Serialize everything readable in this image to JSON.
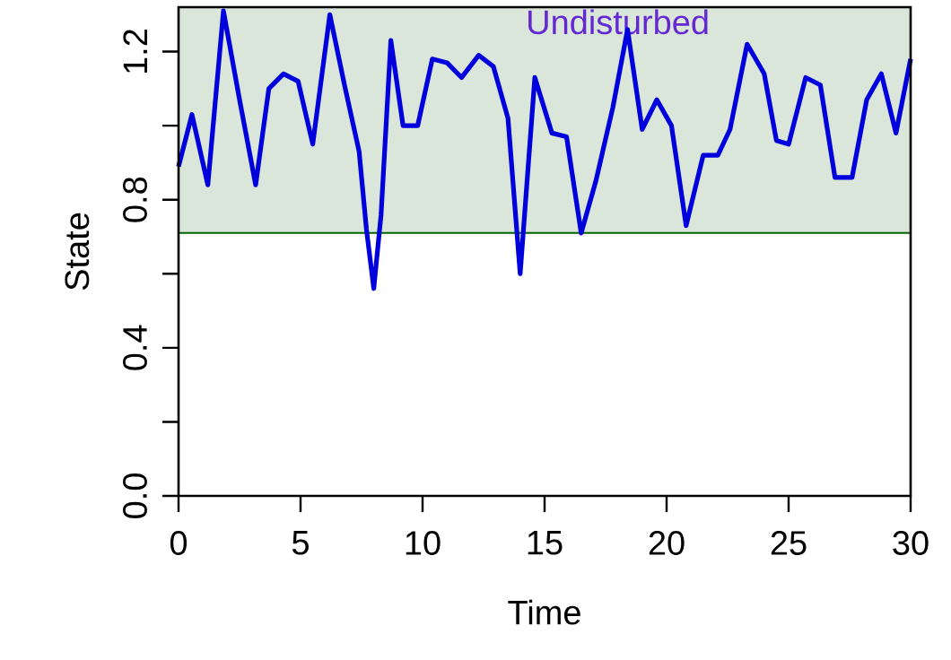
{
  "chart_data": {
    "type": "line",
    "xlabel": "Time",
    "ylabel": "State",
    "x": [
      0,
      0.55,
      1.2,
      1.84,
      2.5,
      3.16,
      3.7,
      4.3,
      4.9,
      5.5,
      6.2,
      6.8,
      7.4,
      7.7,
      8.0,
      8.3,
      8.7,
      9.2,
      9.8,
      10.4,
      11.0,
      11.6,
      12.3,
      12.9,
      13.5,
      14.0,
      14.6,
      15.3,
      15.9,
      16.5,
      17.1,
      17.8,
      18.4,
      19.0,
      19.6,
      20.2,
      20.8,
      21.5,
      22.1,
      22.6,
      23.3,
      24.0,
      24.5,
      25.0,
      25.7,
      26.3,
      26.9,
      27.6,
      28.2,
      28.8,
      29.4,
      30
    ],
    "series": [
      {
        "color": "#0000dd",
        "values": [
          0.89,
          1.03,
          0.84,
          1.31,
          1.07,
          0.84,
          1.1,
          1.14,
          1.12,
          0.95,
          1.3,
          1.11,
          0.93,
          0.72,
          0.56,
          0.76,
          1.23,
          1.0,
          1.0,
          1.18,
          1.17,
          1.13,
          1.19,
          1.16,
          1.02,
          0.6,
          1.13,
          0.98,
          0.97,
          0.71,
          0.85,
          1.05,
          1.26,
          0.99,
          1.07,
          1.0,
          0.73,
          0.92,
          0.92,
          0.99,
          1.22,
          1.14,
          0.96,
          0.95,
          1.13,
          1.11,
          0.86,
          0.86,
          1.07,
          1.14,
          0.98,
          1.18
        ]
      }
    ],
    "xlim": [
      0,
      30
    ],
    "ylim": [
      0,
      1.32
    ],
    "xticks": [
      0,
      5,
      10,
      15,
      20,
      25,
      30
    ],
    "yticks": [
      {
        "value": 0,
        "label": "0.0"
      },
      {
        "value": 0.4,
        "label": "0.4"
      },
      {
        "value": 0.8,
        "label": "0.8"
      },
      {
        "value": 1.2,
        "label": "1.2"
      }
    ],
    "bands": [
      {
        "axis": "y",
        "from": 0.71,
        "to": 1.32,
        "label": "Undisturbed",
        "color": "#d9e6d9"
      }
    ],
    "ref_lines": [
      {
        "axis": "y",
        "value": 0.71,
        "color": "#006400"
      }
    ],
    "grid": false,
    "marker": "none",
    "line_style": "solid"
  }
}
